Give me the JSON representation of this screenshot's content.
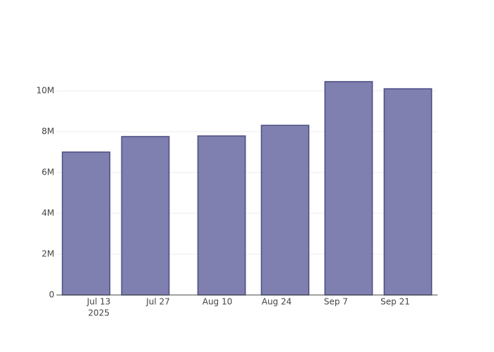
{
  "chart_data": {
    "type": "bar",
    "x": [
      "2025-07-10",
      "2025-07-24",
      "2025-08-11",
      "2025-08-26",
      "2025-09-10",
      "2025-09-24"
    ],
    "values": [
      7000000,
      7760000,
      7790000,
      8310000,
      10450000,
      10100000
    ],
    "color": "#7f7fb0",
    "edge_color": "#4b4b82",
    "xlim": [
      "2025-07-03",
      "2025-10-01"
    ],
    "xticks": [
      {
        "value": "2025-07-13",
        "label": "Jul 13",
        "sublabel": "2025"
      },
      {
        "value": "2025-07-27",
        "label": "Jul 27"
      },
      {
        "value": "2025-08-10",
        "label": "Aug 10"
      },
      {
        "value": "2025-08-24",
        "label": "Aug 24"
      },
      {
        "value": "2025-09-07",
        "label": "Sep 7"
      },
      {
        "value": "2025-09-21",
        "label": "Sep 21"
      }
    ],
    "ylim": [
      0,
      11000000
    ],
    "yticks": [
      0,
      {
        "value": 2000000,
        "label": "2M"
      },
      {
        "value": 4000000,
        "label": "4M"
      },
      {
        "value": 6000000,
        "label": "6M"
      },
      {
        "value": 8000000,
        "label": "8M"
      },
      {
        "value": 10000000,
        "label": "10M"
      }
    ],
    "grid": true
  }
}
